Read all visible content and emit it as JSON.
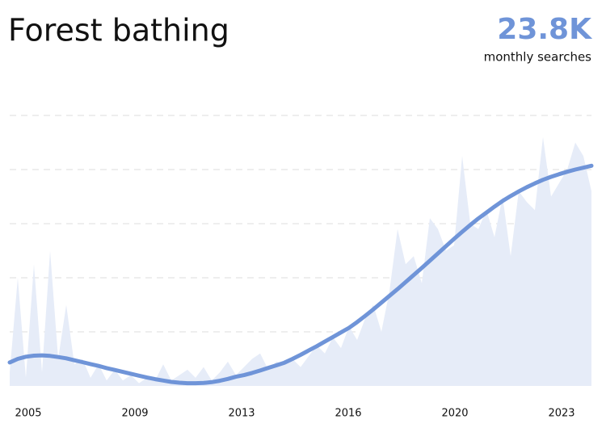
{
  "chart_data": {
    "type": "area_line",
    "title": "Forest bathing",
    "headline_value": "23.8K",
    "headline_label": "monthly searches",
    "xlim": [
      0,
      72
    ],
    "xticks": [
      {
        "value": 2.3,
        "label": "2005"
      },
      {
        "value": 15.5,
        "label": "2009"
      },
      {
        "value": 28.7,
        "label": "2013"
      },
      {
        "value": 41.9,
        "label": "2016"
      },
      {
        "value": 55.1,
        "label": "2020"
      },
      {
        "value": 68.3,
        "label": "2023"
      }
    ],
    "ylim": [
      0,
      100
    ],
    "grid_values": [
      20,
      40,
      60,
      80,
      100
    ],
    "grid": true,
    "x": [
      0,
      1,
      2,
      3,
      4,
      5,
      6,
      7,
      8,
      9,
      10,
      11,
      12,
      13,
      14,
      15,
      16,
      17,
      18,
      19,
      20,
      21,
      22,
      23,
      24,
      25,
      26,
      27,
      28,
      29,
      30,
      31,
      32,
      33,
      34,
      35,
      36,
      37,
      38,
      39,
      40,
      41,
      42,
      43,
      44,
      45,
      46,
      47,
      48,
      49,
      50,
      51,
      52,
      53,
      54,
      55,
      56,
      57,
      58,
      59,
      60,
      61,
      62,
      63,
      64,
      65,
      66,
      67,
      68,
      69,
      70,
      71,
      72
    ],
    "series": [
      {
        "color": "#e6ecf8",
        "values": [
          5,
          40,
          3,
          45,
          5,
          50,
          10,
          30,
          8,
          10,
          3,
          8,
          2,
          6,
          2,
          4,
          1,
          3,
          2,
          8,
          2,
          4,
          6,
          3,
          7,
          2,
          5,
          9,
          4,
          7,
          10,
          12,
          6,
          9,
          8,
          10,
          7,
          11,
          15,
          12,
          18,
          14,
          22,
          17,
          25,
          30,
          20,
          35,
          58,
          45,
          48,
          38,
          62,
          58,
          50,
          52,
          85,
          60,
          58,
          65,
          55,
          70,
          48,
          72,
          68,
          65,
          92,
          70,
          75,
          80,
          90,
          85,
          72
        ]
      },
      {
        "color": "#6f94d8",
        "values": [
          8.7,
          10,
          10.8,
          11.2,
          11.3,
          11.1,
          10.7,
          10.2,
          9.5,
          8.8,
          8.1,
          7.4,
          6.6,
          5.9,
          5.2,
          4.5,
          3.8,
          3.1,
          2.5,
          2.0,
          1.5,
          1.2,
          1.0,
          1.0,
          1.1,
          1.4,
          1.9,
          2.6,
          3.4,
          4.0,
          4.8,
          5.7,
          6.7,
          7.6,
          8.6,
          10,
          11.5,
          13.1,
          14.7,
          16.4,
          18.1,
          19.8,
          21.5,
          23.6,
          25.9,
          28.3,
          30.8,
          33.3,
          35.8,
          38.4,
          41.0,
          43.6,
          46.3,
          49.0,
          51.7,
          54.4,
          57.0,
          59.5,
          61.9,
          64.1,
          66.3,
          68.4,
          70.2,
          71.9,
          73.5,
          74.9,
          76.2,
          77.3,
          78.3,
          79.2,
          80.0,
          80.7,
          81.4
        ]
      }
    ]
  }
}
